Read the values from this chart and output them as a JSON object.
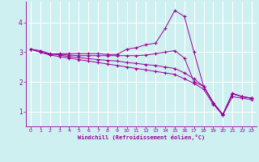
{
  "title": "",
  "xlabel": "Windchill (Refroidissement éolien,°C)",
  "ylabel": "",
  "bg_color": "#cff0f0",
  "grid_color": "#ffffff",
  "line_color": "#990099",
  "xlim": [
    -0.5,
    23.5
  ],
  "ylim": [
    0.5,
    4.7
  ],
  "xticks": [
    0,
    1,
    2,
    3,
    4,
    5,
    6,
    7,
    8,
    9,
    10,
    11,
    12,
    13,
    14,
    15,
    16,
    17,
    18,
    19,
    20,
    21,
    22,
    23
  ],
  "yticks": [
    1,
    2,
    3,
    4
  ],
  "series": [
    [
      3.1,
      3.0,
      2.9,
      2.85,
      2.8,
      2.75,
      2.7,
      2.65,
      2.6,
      2.55,
      2.5,
      2.45,
      2.4,
      2.35,
      2.3,
      2.25,
      2.1,
      1.95,
      1.75,
      1.25,
      0.88,
      1.5,
      1.45,
      1.4
    ],
    [
      3.1,
      3.05,
      2.95,
      2.9,
      2.85,
      2.82,
      2.78,
      2.75,
      2.72,
      2.7,
      2.65,
      2.62,
      2.58,
      2.55,
      2.5,
      2.45,
      2.3,
      2.1,
      1.85,
      1.3,
      0.9,
      1.6,
      1.5,
      1.45
    ],
    [
      3.1,
      3.0,
      2.93,
      2.93,
      2.9,
      2.88,
      2.88,
      2.88,
      2.88,
      2.88,
      2.88,
      2.88,
      2.9,
      2.95,
      3.0,
      3.05,
      2.8,
      2.0,
      1.85,
      1.3,
      0.9,
      1.6,
      1.5,
      1.45
    ],
    [
      3.1,
      3.0,
      2.93,
      2.95,
      2.95,
      2.95,
      2.95,
      2.95,
      2.92,
      2.92,
      3.1,
      3.15,
      3.25,
      3.3,
      3.8,
      4.4,
      4.2,
      3.0,
      1.85,
      1.3,
      0.87,
      1.62,
      1.5,
      1.45
    ]
  ]
}
